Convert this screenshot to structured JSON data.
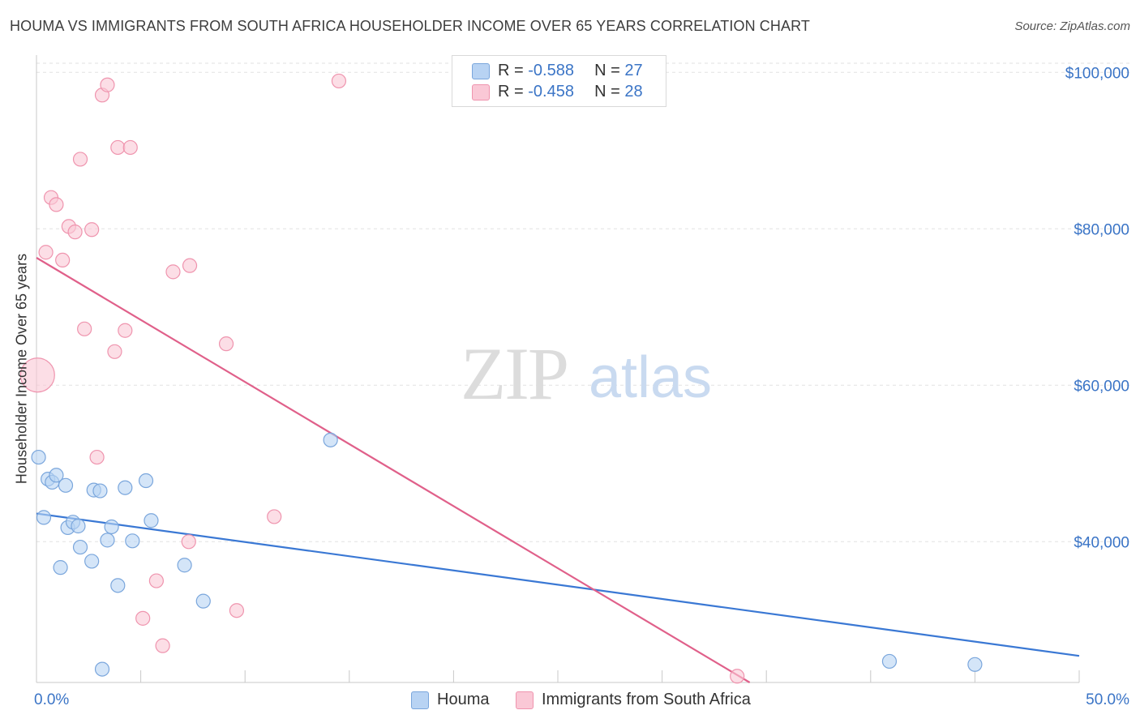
{
  "title": "HOUMA VS IMMIGRANTS FROM SOUTH AFRICA HOUSEHOLDER INCOME OVER 65 YEARS CORRELATION CHART",
  "source": "Source: ZipAtlas.com",
  "watermark": {
    "zip": "ZIP",
    "atlas": "atlas"
  },
  "legend": {
    "items": [
      {
        "r_label": "R = ",
        "r_value": "-0.588",
        "n_label": "N = ",
        "n_value": "27",
        "color": "#b8d3f3",
        "border": "#7aa6dc"
      },
      {
        "r_label": "R = ",
        "r_value": "-0.458",
        "n_label": "N = ",
        "n_value": "28",
        "color": "#fac8d6",
        "border": "#ef94ae"
      }
    ]
  },
  "bottom_legend": [
    "Houma",
    "Immigrants from South Africa"
  ],
  "chart_data": {
    "type": "scatter",
    "title": "HOUMA VS IMMIGRANTS FROM SOUTH AFRICA HOUSEHOLDER INCOME OVER 65 YEARS CORRELATION CHART",
    "xlabel": "",
    "ylabel": "Householder Income Over 65 years",
    "xlim": [
      0,
      50
    ],
    "ylim": [
      22000,
      102000
    ],
    "x_tick_labels": [
      "0.0%",
      "50.0%"
    ],
    "y_ticks": [
      40000,
      60000,
      80000,
      100000
    ],
    "y_tick_labels": [
      "$40,000",
      "$60,000",
      "$80,000",
      "$100,000"
    ],
    "grid": true,
    "series": [
      {
        "name": "Houma",
        "color": "#3a78d4",
        "fill": "#b8d3f3",
        "edge": "#7aa6dc",
        "points": [
          {
            "x": 0.1,
            "y": 50800
          },
          {
            "x": 0.35,
            "y": 43100
          },
          {
            "x": 0.55,
            "y": 48000
          },
          {
            "x": 0.75,
            "y": 47600
          },
          {
            "x": 0.95,
            "y": 48500
          },
          {
            "x": 1.15,
            "y": 36700
          },
          {
            "x": 1.4,
            "y": 47200
          },
          {
            "x": 1.5,
            "y": 41800
          },
          {
            "x": 1.75,
            "y": 42500
          },
          {
            "x": 2.0,
            "y": 42000
          },
          {
            "x": 2.1,
            "y": 39300
          },
          {
            "x": 2.65,
            "y": 37500
          },
          {
            "x": 2.75,
            "y": 46600
          },
          {
            "x": 3.05,
            "y": 46500
          },
          {
            "x": 3.15,
            "y": 23700
          },
          {
            "x": 3.4,
            "y": 40200
          },
          {
            "x": 3.6,
            "y": 41900
          },
          {
            "x": 3.9,
            "y": 34400
          },
          {
            "x": 4.25,
            "y": 46900
          },
          {
            "x": 4.6,
            "y": 40100
          },
          {
            "x": 5.25,
            "y": 47800
          },
          {
            "x": 5.5,
            "y": 42700
          },
          {
            "x": 7.1,
            "y": 37000
          },
          {
            "x": 8.0,
            "y": 32400
          },
          {
            "x": 14.1,
            "y": 53000
          },
          {
            "x": 40.9,
            "y": 24700
          },
          {
            "x": 45.0,
            "y": 24300
          }
        ],
        "trend": {
          "x": [
            0,
            50
          ],
          "y": [
            43600,
            25400
          ]
        }
      },
      {
        "name": "Immigrants from South Africa",
        "color": "#e0608a",
        "fill": "#fac8d6",
        "edge": "#ef94ae",
        "points": [
          {
            "x": 0.05,
            "y": 61300,
            "big": true
          },
          {
            "x": 0.45,
            "y": 77000
          },
          {
            "x": 0.7,
            "y": 84000
          },
          {
            "x": 0.95,
            "y": 83100
          },
          {
            "x": 1.25,
            "y": 76000
          },
          {
            "x": 1.55,
            "y": 80300
          },
          {
            "x": 1.85,
            "y": 79600
          },
          {
            "x": 2.1,
            "y": 88900
          },
          {
            "x": 2.3,
            "y": 67200
          },
          {
            "x": 2.65,
            "y": 79900
          },
          {
            "x": 2.9,
            "y": 50800
          },
          {
            "x": 3.15,
            "y": 97100
          },
          {
            "x": 3.4,
            "y": 98400
          },
          {
            "x": 3.75,
            "y": 64300
          },
          {
            "x": 3.9,
            "y": 90400
          },
          {
            "x": 4.25,
            "y": 67000
          },
          {
            "x": 4.5,
            "y": 90400
          },
          {
            "x": 5.1,
            "y": 30200
          },
          {
            "x": 5.75,
            "y": 35000
          },
          {
            "x": 6.05,
            "y": 26700
          },
          {
            "x": 6.55,
            "y": 74500
          },
          {
            "x": 7.3,
            "y": 40000
          },
          {
            "x": 7.35,
            "y": 75300
          },
          {
            "x": 9.1,
            "y": 65300
          },
          {
            "x": 9.6,
            "y": 31200
          },
          {
            "x": 11.4,
            "y": 43200
          },
          {
            "x": 14.5,
            "y": 98900
          },
          {
            "x": 33.6,
            "y": 22800
          }
        ],
        "trend": {
          "x": [
            0,
            34.2
          ],
          "y": [
            76300,
            22000
          ]
        }
      }
    ]
  }
}
